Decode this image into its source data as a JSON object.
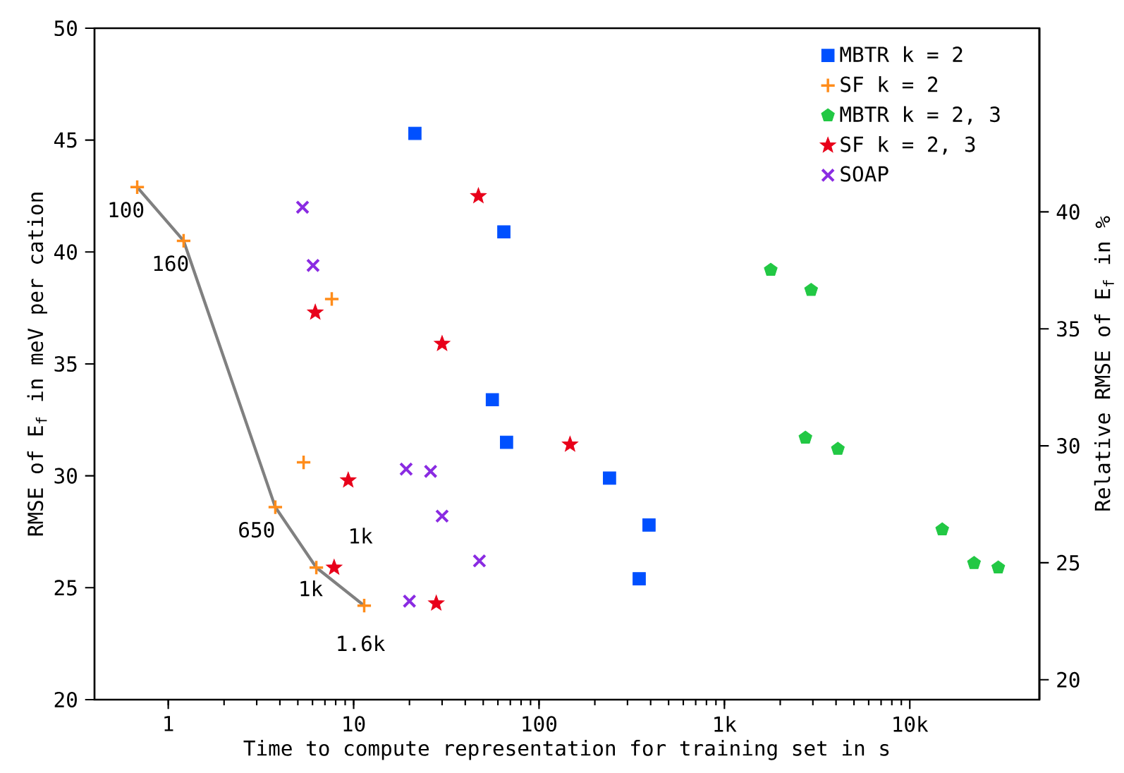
{
  "chart_data": {
    "type": "scatter",
    "xlabel": "Time to compute representation for training set in s",
    "ylabel": "RMSE of E$_{f}$ in meV per cation",
    "y2label": "Relative RMSE of E$_{f}$ in %",
    "log": "x",
    "xlim": [
      0.4,
      50000
    ],
    "xticks": [
      1,
      10,
      100,
      {
        "value": 1000,
        "label": "1k"
      },
      {
        "value": 10000,
        "label": "10k"
      }
    ],
    "ylim": [
      20,
      50
    ],
    "yticks": [
      20,
      25,
      30,
      35,
      40,
      45,
      50
    ],
    "y2lim": [
      19.15,
      47.85
    ],
    "y2ticks": [
      20,
      25,
      30,
      35,
      40
    ],
    "legend": "top right",
    "series": [
      {
        "type": "line",
        "color": "#808080",
        "marker": "none",
        "line_style": "solid",
        "x": [
          0.68,
          1.21,
          3.78,
          6.29,
          11.4
        ],
        "values": [
          42.9,
          40.5,
          28.6,
          25.9,
          24.2
        ]
      },
      {
        "name": "MBTR k = 2",
        "color": "#0050ff",
        "marker": "square",
        "x": [
          21.4,
          64.6,
          56,
          66.8,
          240,
          392,
          347
        ],
        "values": [
          45.3,
          40.9,
          33.4,
          31.5,
          29.9,
          27.8,
          25.4
        ]
      },
      {
        "name": "SF k = 2",
        "color": "#ff8c1a",
        "marker": "plus",
        "x": [
          0.68,
          1.21,
          3.78,
          6.29,
          11.4,
          7.62,
          5.37
        ],
        "values": [
          42.9,
          40.5,
          28.6,
          25.9,
          24.2,
          37.9,
          30.6
        ]
      },
      {
        "name": "MBTR k = 2, 3",
        "color": "#22c844",
        "x": [
          1778,
          2936,
          2735,
          4093,
          14960,
          22200,
          30000
        ],
        "values": [
          39.2,
          38.3,
          31.7,
          31.2,
          27.6,
          26.1,
          25.9
        ]
      },
      {
        "name": "SF k = 2, 3",
        "color": "#e8001a",
        "marker": "star",
        "x": [
          6.21,
          30,
          9.35,
          7.85,
          27.9,
          47.1,
          147
        ],
        "values": [
          37.3,
          35.9,
          29.8,
          25.9,
          24.3,
          42.5,
          31.4
        ]
      },
      {
        "name": "SOAP",
        "color": "#8a2be2",
        "marker": "cross",
        "x": [
          5.3,
          6.04,
          19.2,
          26,
          30,
          20,
          47.7
        ],
        "values": [
          42.0,
          39.4,
          30.3,
          30.2,
          28.2,
          24.4,
          26.2
        ]
      }
    ],
    "annotations": [
      {
        "text": "100",
        "x": 0.68,
        "y": 42.9
      },
      {
        "text": "160",
        "x": 1.21,
        "y": 40.5
      },
      {
        "text": "650",
        "x": 3.78,
        "y": 28.6
      },
      {
        "text": "1k",
        "x": 6.29,
        "y": 25.9
      },
      {
        "text": "1k",
        "x": 7.85,
        "y": 25.9
      },
      {
        "text": "1.6k",
        "x": 11.4,
        "y": 24.2
      }
    ]
  }
}
